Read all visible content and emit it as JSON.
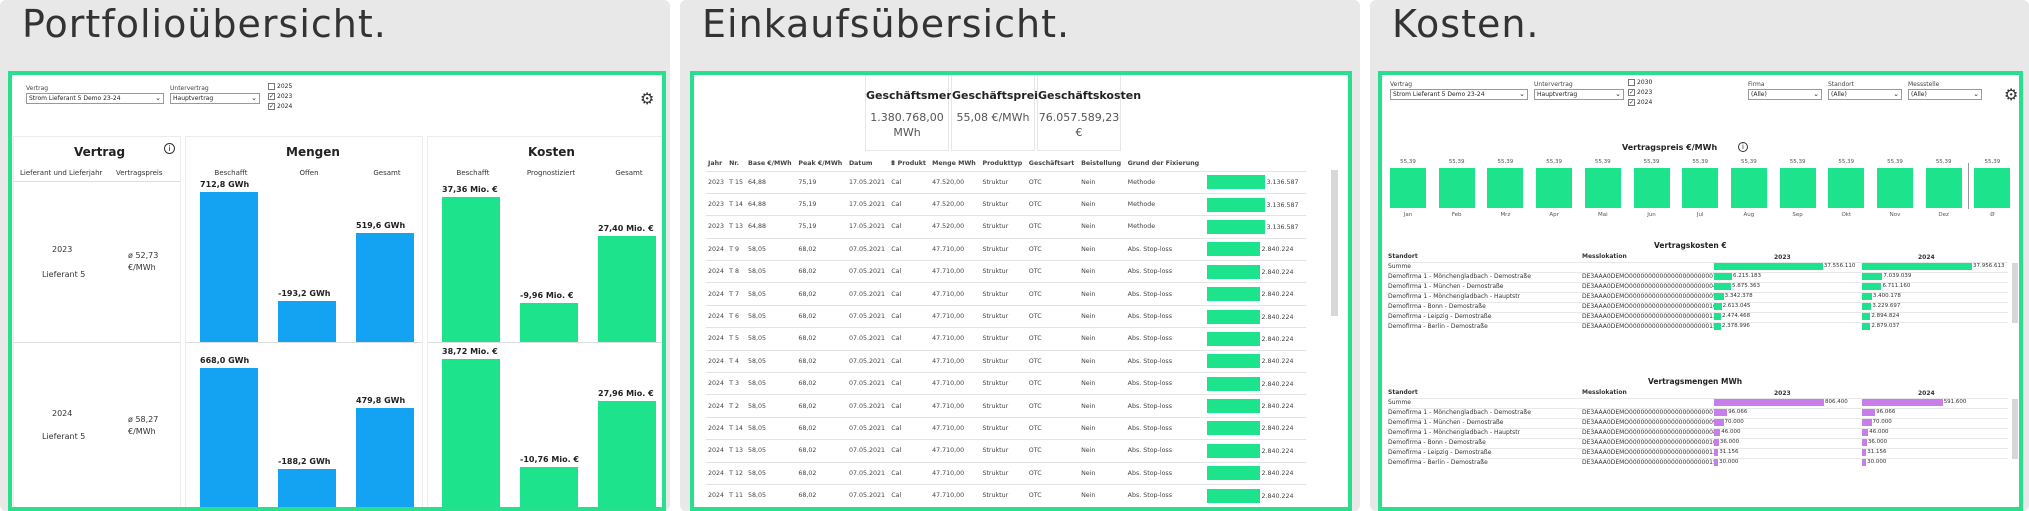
{
  "colors": {
    "accent": "#27df8c",
    "green_bar": "#1ee38d",
    "blue_bar": "#13a3f2",
    "purple_bar": "#c77ee8"
  },
  "portfolio": {
    "title": "Portfolioübersicht.",
    "filters": {
      "vertrag_label": "Vertrag",
      "vertrag_value": "Strom Lieferant 5 Demo 23-24",
      "unter_label": "Untervertrag",
      "unter_value": "Hauptvertrag",
      "years": [
        {
          "label": "2025",
          "checked": false
        },
        {
          "label": "2023",
          "checked": true
        },
        {
          "label": "2024",
          "checked": true
        }
      ]
    },
    "settings_icon": "gear-icon",
    "vertrag_card": {
      "title": "Vertrag",
      "info_icon": "info-icon",
      "col1": "Lieferant und Lieferjahr",
      "col2": "Vertragspreis",
      "rows": [
        {
          "year": "2023",
          "supplier": "Lieferant 5",
          "price_line1": "ø 52,73",
          "price_line2": "€/MWh"
        },
        {
          "year": "2024",
          "supplier": "Lieferant 5",
          "price_line1": "ø 58,27",
          "price_line2": "€/MWh"
        }
      ]
    },
    "mengen_card": {
      "title": "Mengen",
      "cols": [
        "Beschafft",
        "Offen",
        "Gesamt"
      ],
      "rows": [
        {
          "values": [
            712.8,
            -193.2,
            519.6
          ],
          "labels": [
            "712,8 GWh",
            "-193,2 GWh",
            "519,6 GWh"
          ]
        },
        {
          "values": [
            668.0,
            -188.2,
            479.8
          ],
          "labels": [
            "668,0 GWh",
            "-188,2 GWh",
            "479,8 GWh"
          ]
        }
      ]
    },
    "kosten_card": {
      "title": "Kosten",
      "cols": [
        "Beschafft",
        "Prognostiziert",
        "Gesamt"
      ],
      "rows": [
        {
          "values": [
            37.36,
            -9.96,
            27.4
          ],
          "labels": [
            "37,36 Mio. €",
            "-9,96 Mio. €",
            "27,40 Mio. €"
          ]
        },
        {
          "values": [
            38.72,
            -10.76,
            27.96
          ],
          "labels": [
            "38,72 Mio. €",
            "-10,76 Mio. €",
            "27,96 Mio. €"
          ]
        }
      ]
    }
  },
  "einkauf": {
    "title": "Einkaufsübersicht.",
    "kpis": [
      {
        "label": "Geschäftsmenge",
        "value": "1.380.768,00 MWh"
      },
      {
        "label": "Geschäftspreis",
        "value": "55,08 €/MWh"
      },
      {
        "label": "Geschäftskosten",
        "value": "76.057.589,23 €"
      }
    ],
    "columns": [
      "Jahr",
      "Nr.",
      "Base €/MWh",
      "Peak €/MWh",
      "Datum",
      "Produkt",
      "Menge MWh",
      "Produkttyp",
      "Geschäftsart",
      "Beistellung",
      "Grund der Fixierung",
      ""
    ],
    "filter_icon": "filter-icon",
    "rows": [
      [
        "2023",
        "T 15",
        "64,88",
        "75,19",
        "17.05.2021",
        "Cal",
        "47.520,00",
        "Struktur",
        "OTC",
        "Nein",
        "Methode",
        "3.136.587"
      ],
      [
        "2023",
        "T 14",
        "64,88",
        "75,19",
        "17.05.2021",
        "Cal",
        "47.520,00",
        "Struktur",
        "OTC",
        "Nein",
        "Methode",
        "3.136.587"
      ],
      [
        "2023",
        "T 13",
        "64,88",
        "75,19",
        "17.05.2021",
        "Cal",
        "47.520,00",
        "Struktur",
        "OTC",
        "Nein",
        "Methode",
        "3.136.587"
      ],
      [
        "2024",
        "T 9",
        "58,05",
        "68,02",
        "07.05.2021",
        "Cal",
        "47.710,00",
        "Struktur",
        "OTC",
        "Nein",
        "Abs. Stop-loss",
        "2.840.224"
      ],
      [
        "2024",
        "T 8",
        "58,05",
        "68,02",
        "07.05.2021",
        "Cal",
        "47.710,00",
        "Struktur",
        "OTC",
        "Nein",
        "Abs. Stop-loss",
        "2.840.224"
      ],
      [
        "2024",
        "T 7",
        "58,05",
        "68,02",
        "07.05.2021",
        "Cal",
        "47.710,00",
        "Struktur",
        "OTC",
        "Nein",
        "Abs. Stop-loss",
        "2.840.224"
      ],
      [
        "2024",
        "T 6",
        "58,05",
        "68,02",
        "07.05.2021",
        "Cal",
        "47.710,00",
        "Struktur",
        "OTC",
        "Nein",
        "Abs. Stop-loss",
        "2.840.224"
      ],
      [
        "2024",
        "T 5",
        "58,05",
        "68,02",
        "07.05.2021",
        "Cal",
        "47.710,00",
        "Struktur",
        "OTC",
        "Nein",
        "Abs. Stop-loss",
        "2.840.224"
      ],
      [
        "2024",
        "T 4",
        "58,05",
        "68,02",
        "07.05.2021",
        "Cal",
        "47.710,00",
        "Struktur",
        "OTC",
        "Nein",
        "Abs. Stop-loss",
        "2.840.224"
      ],
      [
        "2024",
        "T 3",
        "58,05",
        "68,02",
        "07.05.2021",
        "Cal",
        "47.710,00",
        "Struktur",
        "OTC",
        "Nein",
        "Abs. Stop-loss",
        "2.840.224"
      ],
      [
        "2024",
        "T 2",
        "58,05",
        "68,02",
        "07.05.2021",
        "Cal",
        "47.710,00",
        "Struktur",
        "OTC",
        "Nein",
        "Abs. Stop-loss",
        "2.840.224"
      ],
      [
        "2024",
        "T 14",
        "58,05",
        "68,02",
        "07.05.2021",
        "Cal",
        "47.710,00",
        "Struktur",
        "OTC",
        "Nein",
        "Abs. Stop-loss",
        "2.840.224"
      ],
      [
        "2024",
        "T 13",
        "58,05",
        "68,02",
        "07.05.2021",
        "Cal",
        "47.710,00",
        "Struktur",
        "OTC",
        "Nein",
        "Abs. Stop-loss",
        "2.840.224"
      ],
      [
        "2024",
        "T 12",
        "58,05",
        "68,02",
        "07.05.2021",
        "Cal",
        "47.710,00",
        "Struktur",
        "OTC",
        "Nein",
        "Abs. Stop-loss",
        "2.840.224"
      ],
      [
        "2024",
        "T 11",
        "58,05",
        "68,02",
        "07.05.2021",
        "Cal",
        "47.710,00",
        "Struktur",
        "OTC",
        "Nein",
        "Abs. Stop-loss",
        "2.840.224"
      ]
    ]
  },
  "kosten": {
    "title": "Kosten.",
    "filters": {
      "vertrag_label": "Vertrag",
      "vertrag_value": "Strom Lieferant 5 Demo 23-24",
      "unter_label": "Untervertrag",
      "unter_value": "Hauptvertrag",
      "years": [
        {
          "label": "2030",
          "checked": false
        },
        {
          "label": "2023",
          "checked": true
        },
        {
          "label": "2024",
          "checked": true
        }
      ],
      "firma_label": "Firma",
      "firma_value": "(Alle)",
      "standort_label": "Standort",
      "standort_value": "(Alle)",
      "messstelle_label": "Messstelle",
      "messstelle_value": "(Alle)"
    },
    "settings_icon": "gear-icon",
    "preis_chart": {
      "title": "Vertragspreis €/MWh",
      "months": [
        "Jan",
        "Feb",
        "Mrz",
        "Apr",
        "Mai",
        "Jun",
        "Jul",
        "Aug",
        "Sep",
        "Okt",
        "Nov",
        "Dez",
        "Ø"
      ],
      "values": [
        55.39,
        55.39,
        55.39,
        55.39,
        55.39,
        55.39,
        55.39,
        55.39,
        55.39,
        55.39,
        55.39,
        55.39,
        55.39
      ],
      "labels": [
        "55,39",
        "55,39",
        "55,39",
        "55,39",
        "55,39",
        "55,39",
        "55,39",
        "55,39",
        "55,39",
        "55,39",
        "55,39",
        "55,39",
        "55,39"
      ]
    },
    "vk_table": {
      "title": "Vertragskosten €",
      "col_standort": "Standort",
      "col_mess": "Messlokation",
      "years": [
        "2023",
        "2024"
      ],
      "rows": [
        {
          "name": "Summe",
          "mess": "",
          "v": [
            37556.11,
            37956.613
          ],
          "l": [
            "37.556.110",
            "37.956.613"
          ]
        },
        {
          "name": "Demofirma 1 - Mönchengladbach - Demostraße",
          "mess": "DE3AAA0DEMO00000000000000000000007",
          "v": [
            6215.183,
            7039.039
          ],
          "l": [
            "6.215.183",
            "7.039.039"
          ]
        },
        {
          "name": "Demofirma 1 - München - Demostraße",
          "mess": "DE3AAA0DEMO00000000000000000000004",
          "v": [
            5875.363,
            6711.16
          ],
          "l": [
            "5.875.363",
            "6.711.160"
          ]
        },
        {
          "name": "Demofirma 1 - Mönchengladbach - Hauptstr",
          "mess": "DE3AAA0DEMO00000000000000000000005",
          "v": [
            3342.378,
            3400.178
          ],
          "l": [
            "3.342.378",
            "3.400.178"
          ]
        },
        {
          "name": "Demofirma - Bonn - Demostraße",
          "mess": "DE3AAA0DEMO00000000000000000000016",
          "v": [
            2613.045,
            3229.697
          ],
          "l": [
            "2.613.045",
            "3.229.697"
          ]
        },
        {
          "name": "Demofirma - Leipzig - Demostraße",
          "mess": "DE3AAA0DEMO00000000000000000000013",
          "v": [
            2474.468,
            2894.824
          ],
          "l": [
            "2.474.468",
            "2.894.824"
          ]
        },
        {
          "name": "Demofirma - Berlin - Demostraße",
          "mess": "DE3AAA0DEMO00000000000000000000015",
          "v": [
            2378.996,
            2879.037
          ],
          "l": [
            "2.378.996",
            "2.879.037"
          ]
        }
      ]
    },
    "vm_table": {
      "title": "Vertragsmengen MWh",
      "col_standort": "Standort",
      "col_mess": "Messlokation",
      "years": [
        "2023",
        "2024"
      ],
      "rows": [
        {
          "name": "Summe",
          "mess": "",
          "v": [
            806400,
            591600
          ],
          "l": [
            "806.400",
            "591.600"
          ]
        },
        {
          "name": "Demofirma 1 - Mönchengladbach - Demostraße",
          "mess": "DE3AAA0DEMO00000000000000000000007",
          "v": [
            96066,
            96066
          ],
          "l": [
            "96.066",
            "96.066"
          ]
        },
        {
          "name": "Demofirma 1 - München - Demostraße",
          "mess": "DE3AAA0DEMO00000000000000000000009",
          "v": [
            70000,
            70000
          ],
          "l": [
            "70.000",
            "70.000"
          ]
        },
        {
          "name": "Demofirma 1 - Mönchengladbach - Hauptstr",
          "mess": "DE3AAA0DEMO00000000000000000000008",
          "v": [
            46000,
            46000
          ],
          "l": [
            "46.000",
            "46.000"
          ]
        },
        {
          "name": "Demofirma - Bonn - Demostraße",
          "mess": "DE3AAA0DEMO00000000000000000000016",
          "v": [
            36000,
            36000
          ],
          "l": [
            "36.000",
            "36.000"
          ]
        },
        {
          "name": "Demofirma - Leipzig - Demostraße",
          "mess": "DE3AAA0DEMO00000000000000000000013",
          "v": [
            31156,
            31156
          ],
          "l": [
            "31.156",
            "31.156"
          ]
        },
        {
          "name": "Demofirma - Berlin - Demostraße",
          "mess": "DE3AAA0DEMO00000000000000000000015",
          "v": [
            30000,
            30000
          ],
          "l": [
            "30.000",
            "30.000"
          ]
        }
      ]
    }
  }
}
